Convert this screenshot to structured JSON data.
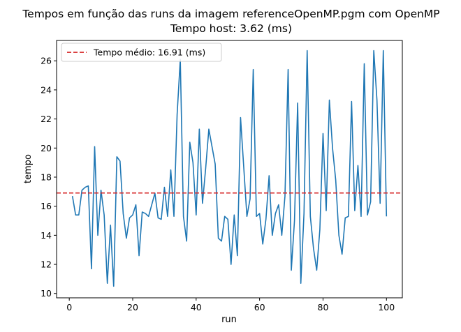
{
  "chart_data": {
    "type": "line",
    "title": "Tempos em função das runs da imagem referenceOpenMP.pgm com OpenMP",
    "subtitle": "Tempo host: 3.62 (ms)",
    "xlabel": "run",
    "ylabel": "tempo",
    "xlim": [
      -4,
      105
    ],
    "ylim": [
      9.7,
      27.4
    ],
    "xticks": [
      0,
      20,
      40,
      60,
      80,
      100
    ],
    "yticks": [
      10,
      12,
      14,
      16,
      18,
      20,
      22,
      24,
      26
    ],
    "grid": false,
    "legend_position": "top-left",
    "series": [
      {
        "color": "#1f77b4",
        "x": [
          1,
          2,
          3,
          4,
          5,
          6,
          7,
          8,
          9,
          10,
          11,
          12,
          13,
          14,
          15,
          16,
          17,
          18,
          19,
          20,
          21,
          22,
          23,
          24,
          25,
          26,
          27,
          28,
          29,
          30,
          31,
          32,
          33,
          34,
          35,
          36,
          37,
          38,
          39,
          40,
          41,
          42,
          43,
          44,
          45,
          46,
          47,
          48,
          49,
          50,
          51,
          52,
          53,
          54,
          55,
          56,
          57,
          58,
          59,
          60,
          61,
          62,
          63,
          64,
          65,
          66,
          67,
          68,
          69,
          70,
          71,
          72,
          73,
          74,
          75,
          76,
          77,
          78,
          79,
          80,
          81,
          82,
          83,
          84,
          85,
          86,
          87,
          88,
          89,
          90,
          91,
          92,
          93,
          94,
          95,
          96,
          97,
          98,
          99,
          100
        ],
        "values": [
          16.7,
          15.4,
          15.4,
          17.1,
          17.3,
          17.4,
          11.7,
          20.1,
          14.0,
          17.1,
          15.4,
          10.7,
          14.7,
          10.5,
          19.4,
          19.1,
          15.5,
          13.8,
          15.2,
          15.4,
          16.1,
          12.6,
          15.6,
          15.5,
          15.3,
          16.1,
          16.9,
          15.2,
          15.1,
          17.3,
          15.3,
          18.5,
          15.3,
          22.3,
          26.1,
          15.3,
          13.6,
          20.4,
          19.0,
          15.4,
          21.3,
          16.2,
          18.6,
          21.3,
          20.1,
          18.9,
          13.8,
          13.6,
          15.3,
          15.1,
          12.0,
          15.4,
          12.6,
          22.1,
          18.7,
          15.3,
          16.5,
          25.4,
          15.3,
          15.5,
          13.4,
          15.1,
          18.1,
          14.0,
          15.5,
          16.1,
          14.0,
          16.7,
          25.4,
          11.6,
          15.0,
          23.1,
          10.7,
          15.5,
          26.7,
          15.3,
          13.1,
          11.6,
          14.4,
          21.0,
          15.7,
          23.3,
          20.0,
          17.8,
          14.0,
          12.7,
          15.2,
          15.3,
          23.2,
          15.7,
          18.8,
          15.3,
          25.8,
          15.4,
          16.3,
          26.7,
          23.3,
          16.2,
          26.7,
          15.3
        ]
      }
    ],
    "reference_line": {
      "label": "Tempo médio: 16.91 (ms)",
      "y": 16.91,
      "color": "#d62728",
      "style": "dashed"
    }
  }
}
